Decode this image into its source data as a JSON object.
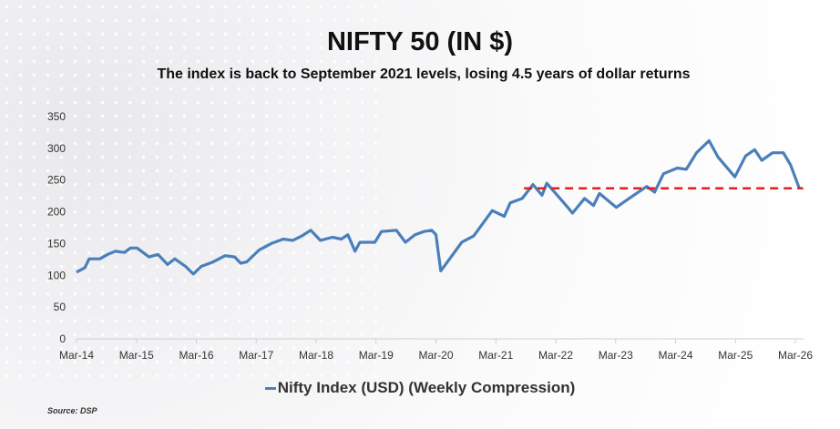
{
  "chart_data": {
    "type": "line",
    "title": "NIFTY 50 (IN $)",
    "subtitle": "The index is back to September 2021 levels, losing 4.5 years of dollar returns",
    "xlabel": "",
    "ylabel": "",
    "ylim": [
      0,
      350
    ],
    "yticks": [
      "0",
      "50",
      "100",
      "150",
      "200",
      "250",
      "300",
      "350"
    ],
    "xticks": [
      "Mar-14",
      "Mar-15",
      "Mar-16",
      "Mar-17",
      "Mar-18",
      "Mar-19",
      "Mar-20",
      "Mar-21",
      "Mar-22",
      "Mar-23",
      "Mar-24",
      "Mar-25",
      "Mar-26"
    ],
    "grid": false,
    "legend_position": "bottom",
    "series": [
      {
        "name": "Nifty Index (USD) (Weekly Compression)",
        "color": "#4a7fba",
        "x": [
          2014.2,
          2014.34,
          2014.41,
          2014.59,
          2014.72,
          2014.85,
          2015.0,
          2015.1,
          2015.21,
          2015.31,
          2015.41,
          2015.56,
          2015.72,
          2015.84,
          2016.02,
          2016.15,
          2016.28,
          2016.48,
          2016.68,
          2016.84,
          2016.94,
          2017.04,
          2017.25,
          2017.45,
          2017.65,
          2017.81,
          2017.96,
          2018.11,
          2018.27,
          2018.47,
          2018.62,
          2018.73,
          2018.85,
          2018.93,
          2019.18,
          2019.29,
          2019.54,
          2019.69,
          2019.85,
          2020.0,
          2020.13,
          2020.2,
          2020.28,
          2020.43,
          2020.63,
          2020.83,
          2021.14,
          2021.34,
          2021.44,
          2021.64,
          2021.82,
          2021.97,
          2022.05,
          2022.2,
          2022.4,
          2022.48,
          2022.68,
          2022.83,
          2022.93,
          2023.21,
          2023.47,
          2023.72,
          2023.85,
          2024.0,
          2024.23,
          2024.38,
          2024.55,
          2024.76,
          2024.91,
          2025.19,
          2025.37,
          2025.52,
          2025.64,
          2025.82,
          2026.0,
          2026.12,
          2026.27
        ],
        "values": [
          105,
          112,
          126,
          126,
          133,
          138,
          136,
          143,
          143,
          136,
          129,
          133,
          117,
          126,
          114,
          102,
          114,
          121,
          131,
          129,
          119,
          121,
          140,
          150,
          157,
          155,
          162,
          171,
          155,
          160,
          157,
          164,
          138,
          152,
          152,
          169,
          171,
          152,
          164,
          169,
          171,
          164,
          107,
          126,
          152,
          162,
          202,
          193,
          214,
          221,
          243,
          226,
          245,
          229,
          207,
          198,
          221,
          210,
          229,
          207,
          224,
          240,
          231,
          260,
          269,
          267,
          293,
          312,
          286,
          255,
          288,
          298,
          281,
          293,
          293,
          274,
          236
        ]
      }
    ],
    "reference_line": {
      "value": 237,
      "x_start": 2021.67,
      "x_end": 2026.33,
      "color": "#e02020",
      "style": "dashed"
    },
    "source": "Source: DSP"
  }
}
